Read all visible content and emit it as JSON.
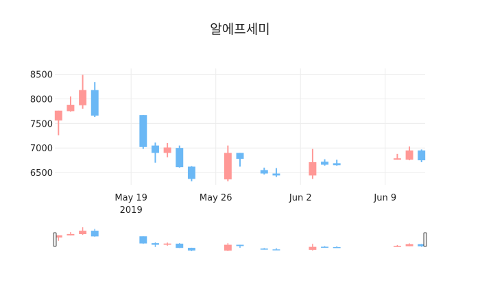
{
  "chart_data": {
    "type": "candlestick",
    "title": "알에프세미",
    "xlabel": "",
    "ylabel": "",
    "ylim": [
      6250,
      8620
    ],
    "xlim": [
      "2019-05-13",
      "2019-06-12"
    ],
    "y_ticks": [
      6500,
      7000,
      7500,
      8000,
      8500
    ],
    "x_ticks": [
      {
        "date": "2019-05-19",
        "label": "May 19",
        "sublabel": "2019"
      },
      {
        "date": "2019-05-26",
        "label": "May 26",
        "sublabel": ""
      },
      {
        "date": "2019-06-02",
        "label": "Jun 2",
        "sublabel": ""
      },
      {
        "date": "2019-06-09",
        "label": "Jun 9",
        "sublabel": ""
      }
    ],
    "increasing_color": "#ff9896",
    "decreasing_color": "#6bb8f5",
    "grid": true,
    "rangeslider": true,
    "candles": [
      {
        "date": "2019-05-13",
        "open": 7560,
        "high": 7760,
        "low": 7260,
        "close": 7760
      },
      {
        "date": "2019-05-14",
        "open": 7750,
        "high": 8050,
        "low": 7740,
        "close": 7880
      },
      {
        "date": "2019-05-15",
        "open": 7870,
        "high": 8490,
        "low": 7800,
        "close": 8180
      },
      {
        "date": "2019-05-16",
        "open": 8180,
        "high": 8340,
        "low": 7630,
        "close": 7660
      },
      {
        "date": "2019-05-20",
        "open": 7670,
        "high": 7670,
        "low": 6980,
        "close": 7020
      },
      {
        "date": "2019-05-21",
        "open": 7050,
        "high": 7110,
        "low": 6700,
        "close": 6900
      },
      {
        "date": "2019-05-22",
        "open": 6900,
        "high": 7100,
        "low": 6810,
        "close": 7010
      },
      {
        "date": "2019-05-23",
        "open": 7000,
        "high": 7050,
        "low": 6600,
        "close": 6610
      },
      {
        "date": "2019-05-24",
        "open": 6620,
        "high": 6630,
        "low": 6320,
        "close": 6370
      },
      {
        "date": "2019-05-27",
        "open": 6360,
        "high": 7050,
        "low": 6320,
        "close": 6900
      },
      {
        "date": "2019-05-28",
        "open": 6900,
        "high": 6900,
        "low": 6620,
        "close": 6780
      },
      {
        "date": "2019-05-30",
        "open": 6550,
        "high": 6600,
        "low": 6460,
        "close": 6480
      },
      {
        "date": "2019-05-31",
        "open": 6480,
        "high": 6590,
        "low": 6410,
        "close": 6440
      },
      {
        "date": "2019-06-03",
        "open": 6440,
        "high": 6980,
        "low": 6370,
        "close": 6710
      },
      {
        "date": "2019-06-04",
        "open": 6720,
        "high": 6770,
        "low": 6640,
        "close": 6660
      },
      {
        "date": "2019-06-05",
        "open": 6690,
        "high": 6760,
        "low": 6640,
        "close": 6650
      },
      {
        "date": "2019-06-10",
        "open": 6760,
        "high": 6880,
        "low": 6760,
        "close": 6790
      },
      {
        "date": "2019-06-11",
        "open": 6760,
        "high": 7030,
        "low": 6750,
        "close": 6950
      },
      {
        "date": "2019-06-12",
        "open": 6950,
        "high": 6970,
        "low": 6710,
        "close": 6750
      }
    ]
  }
}
